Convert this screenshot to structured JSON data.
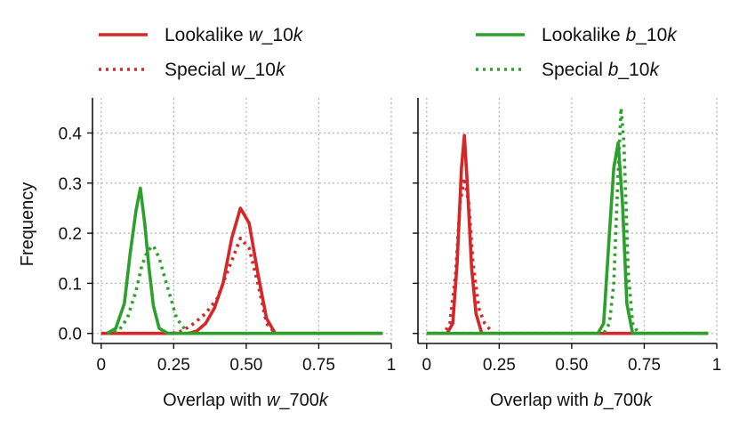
{
  "chart_data": {
    "type": "line",
    "colors": {
      "lookalike_red": "#d62728",
      "green": "#2ca02c"
    },
    "legend": [
      {
        "key": "lookalike_w",
        "prefix": "Lookalike ",
        "var": "w",
        "suffix": "_10",
        "unit": "k",
        "color": "#d62728",
        "style": "solid",
        "placement": "top-left"
      },
      {
        "key": "special_w",
        "prefix": "Special ",
        "var": "w",
        "suffix": "_10",
        "unit": "k",
        "color": "#d62728",
        "style": "dotted",
        "placement": "top-left"
      },
      {
        "key": "lookalike_b",
        "prefix": "Lookalike ",
        "var": "b",
        "suffix": "_10",
        "unit": "k",
        "color": "#2ca02c",
        "style": "solid",
        "placement": "top-right"
      },
      {
        "key": "special_b",
        "prefix": "Special ",
        "var": "b",
        "suffix": "_10",
        "unit": "k",
        "color": "#2ca02c",
        "style": "dotted",
        "placement": "top-right"
      }
    ],
    "panels": [
      {
        "id": "left",
        "ylabel": "Frequency",
        "xlabel": {
          "prefix": "Overlap with ",
          "var": "w",
          "suffix": "_700",
          "unit": "k"
        },
        "xlim": [
          -0.03,
          1.0
        ],
        "ylim": [
          -0.02,
          0.47
        ],
        "xticks": [
          0,
          0.25,
          0.5,
          0.75,
          1
        ],
        "xtick_labels": [
          "0",
          "0.25",
          "0.50",
          "0.75",
          "1"
        ],
        "yticks": [
          0,
          0.1,
          0.2,
          0.3,
          0.4
        ],
        "ytick_labels": [
          "0.0",
          "0.1",
          "0.2",
          "0.3",
          "0.4"
        ],
        "grid": true,
        "series": [
          {
            "name": "Lookalike w_10k",
            "color": "#d62728",
            "style": "solid",
            "x": [
              0.0,
              0.3,
              0.33,
              0.36,
              0.39,
              0.42,
              0.45,
              0.48,
              0.51,
              0.54,
              0.57,
              0.6,
              0.97
            ],
            "y": [
              0.0,
              0.0,
              0.005,
              0.02,
              0.05,
              0.1,
              0.19,
              0.25,
              0.22,
              0.12,
              0.03,
              0.0,
              0.0
            ]
          },
          {
            "name": "Special w_10k",
            "color": "#d62728",
            "style": "dotted",
            "x": [
              0.0,
              0.24,
              0.28,
              0.32,
              0.36,
              0.4,
              0.44,
              0.48,
              0.51,
              0.54,
              0.57,
              0.6,
              0.97
            ],
            "y": [
              0.0,
              0.0,
              0.005,
              0.02,
              0.04,
              0.07,
              0.13,
              0.19,
              0.17,
              0.1,
              0.02,
              0.0,
              0.0
            ]
          },
          {
            "name": "Lookalike b_10k",
            "color": "#2ca02c",
            "style": "solid",
            "x": [
              0.02,
              0.05,
              0.08,
              0.1,
              0.12,
              0.135,
              0.15,
              0.165,
              0.18,
              0.2,
              0.23,
              0.97
            ],
            "y": [
              0.0,
              0.01,
              0.06,
              0.16,
              0.245,
              0.29,
              0.22,
              0.13,
              0.055,
              0.01,
              0.0,
              0.0
            ]
          },
          {
            "name": "Special b_10k",
            "color": "#2ca02c",
            "style": "dotted",
            "x": [
              0.02,
              0.06,
              0.09,
              0.12,
              0.14,
              0.16,
              0.18,
              0.2,
              0.23,
              0.26,
              0.3,
              0.97
            ],
            "y": [
              0.0,
              0.005,
              0.03,
              0.085,
              0.135,
              0.165,
              0.175,
              0.15,
              0.09,
              0.03,
              0.0,
              0.0
            ]
          }
        ]
      },
      {
        "id": "right",
        "xlabel": {
          "prefix": "Overlap with ",
          "var": "b",
          "suffix": "_700",
          "unit": "k"
        },
        "xlim": [
          -0.03,
          1.0
        ],
        "ylim": [
          -0.02,
          0.47
        ],
        "xticks": [
          0,
          0.25,
          0.5,
          0.75,
          1
        ],
        "xtick_labels": [
          "0",
          "0.25",
          "0.50",
          "0.75",
          "1"
        ],
        "yticks": [
          0,
          0.1,
          0.2,
          0.3,
          0.4
        ],
        "grid": true,
        "series": [
          {
            "name": "Lookalike w_10k",
            "color": "#d62728",
            "style": "solid",
            "x": [
              0.0,
              0.07,
              0.09,
              0.105,
              0.12,
              0.13,
              0.14,
              0.155,
              0.17,
              0.19,
              0.97
            ],
            "y": [
              0.0,
              0.0,
              0.02,
              0.14,
              0.33,
              0.395,
              0.3,
              0.13,
              0.04,
              0.0,
              0.0
            ]
          },
          {
            "name": "Special w_10k",
            "color": "#d62728",
            "style": "dotted",
            "x": [
              0.0,
              0.06,
              0.08,
              0.1,
              0.115,
              0.13,
              0.145,
              0.16,
              0.18,
              0.2,
              0.23,
              0.97
            ],
            "y": [
              0.0,
              0.0,
              0.02,
              0.12,
              0.26,
              0.31,
              0.26,
              0.14,
              0.05,
              0.02,
              0.0,
              0.0
            ]
          },
          {
            "name": "Lookalike b_10k",
            "color": "#2ca02c",
            "style": "solid",
            "x": [
              0.0,
              0.59,
              0.61,
              0.63,
              0.645,
              0.66,
              0.675,
              0.69,
              0.71,
              0.97
            ],
            "y": [
              0.0,
              0.0,
              0.02,
              0.2,
              0.33,
              0.38,
              0.26,
              0.06,
              0.0,
              0.0
            ]
          },
          {
            "name": "Special b_10k",
            "color": "#2ca02c",
            "style": "dotted",
            "x": [
              0.0,
              0.61,
              0.63,
              0.645,
              0.66,
              0.67,
              0.68,
              0.695,
              0.71,
              0.73,
              0.97
            ],
            "y": [
              0.0,
              0.0,
              0.02,
              0.1,
              0.32,
              0.45,
              0.38,
              0.12,
              0.02,
              0.0,
              0.0
            ]
          }
        ]
      }
    ]
  }
}
